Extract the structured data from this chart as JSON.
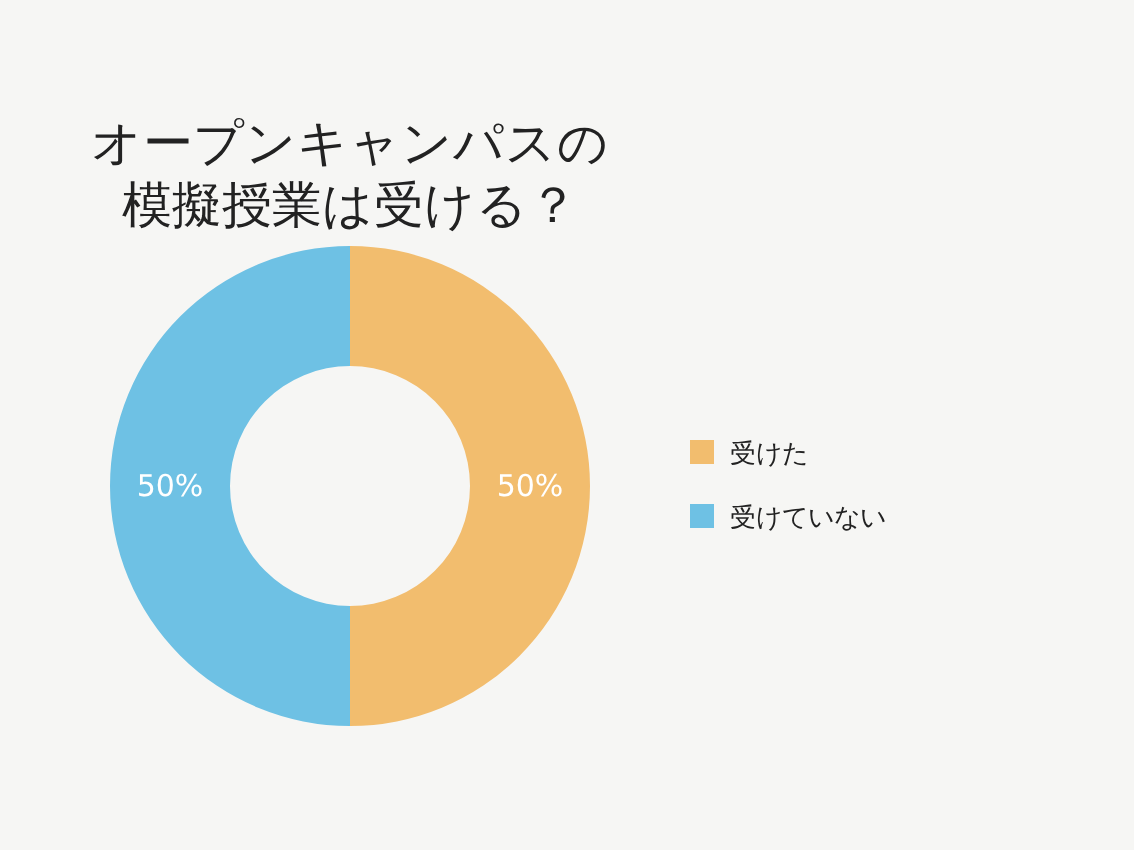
{
  "chart_data": {
    "type": "donut",
    "title": "オープンキャンパスの模擬授業は受ける？",
    "categories": [
      "受けた",
      "受けていない"
    ],
    "values": [
      50,
      50
    ],
    "colors": [
      "#f2bd6e",
      "#6ec1e4"
    ],
    "value_labels": [
      "50%",
      "50%"
    ],
    "legend": "right"
  }
}
